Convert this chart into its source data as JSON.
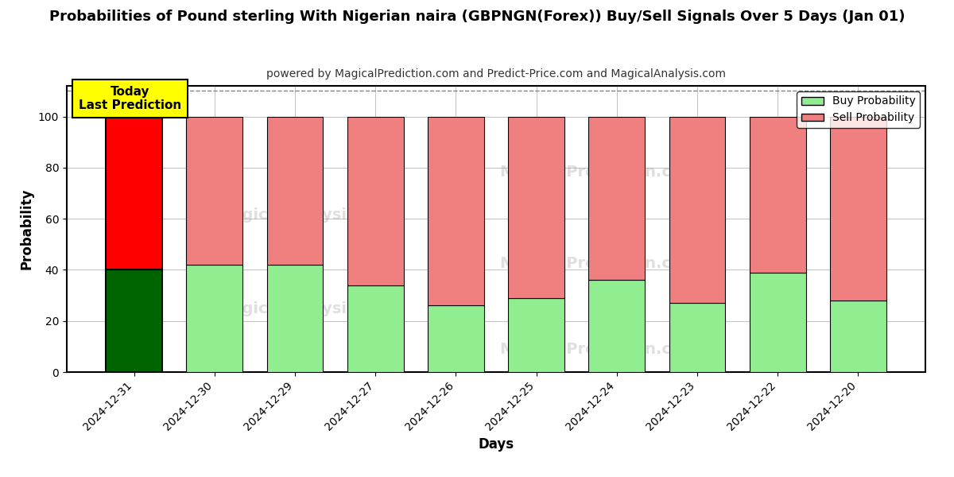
{
  "title": "Probabilities of Pound sterling With Nigerian naira (GBPNGN(Forex)) Buy/Sell Signals Over 5 Days (Jan 01)",
  "subtitle": "powered by MagicalPrediction.com and Predict-Price.com and MagicalAnalysis.com",
  "xlabel": "Days",
  "ylabel": "Probability",
  "dates": [
    "2024-12-31",
    "2024-12-30",
    "2024-12-29",
    "2024-12-27",
    "2024-12-26",
    "2024-12-25",
    "2024-12-24",
    "2024-12-23",
    "2024-12-22",
    "2024-12-20"
  ],
  "buy_values": [
    40,
    42,
    42,
    34,
    26,
    29,
    36,
    27,
    39,
    28
  ],
  "sell_values": [
    60,
    58,
    58,
    66,
    74,
    71,
    64,
    73,
    61,
    72
  ],
  "today_buy_color": "#006400",
  "today_sell_color": "#FF0000",
  "buy_color": "#90EE90",
  "sell_color": "#F08080",
  "bar_edge_color": "#000000",
  "today_annotation_bg": "#FFFF00",
  "today_annotation_text": "Today\nLast Prediction",
  "ylim": [
    0,
    112
  ],
  "yticks": [
    0,
    20,
    40,
    60,
    80,
    100
  ],
  "legend_buy": "Buy Probability",
  "legend_sell": "Sell Probability",
  "dashed_line_y": 110,
  "background_color": "#FFFFFF",
  "grid_color": "#AAAAAA"
}
